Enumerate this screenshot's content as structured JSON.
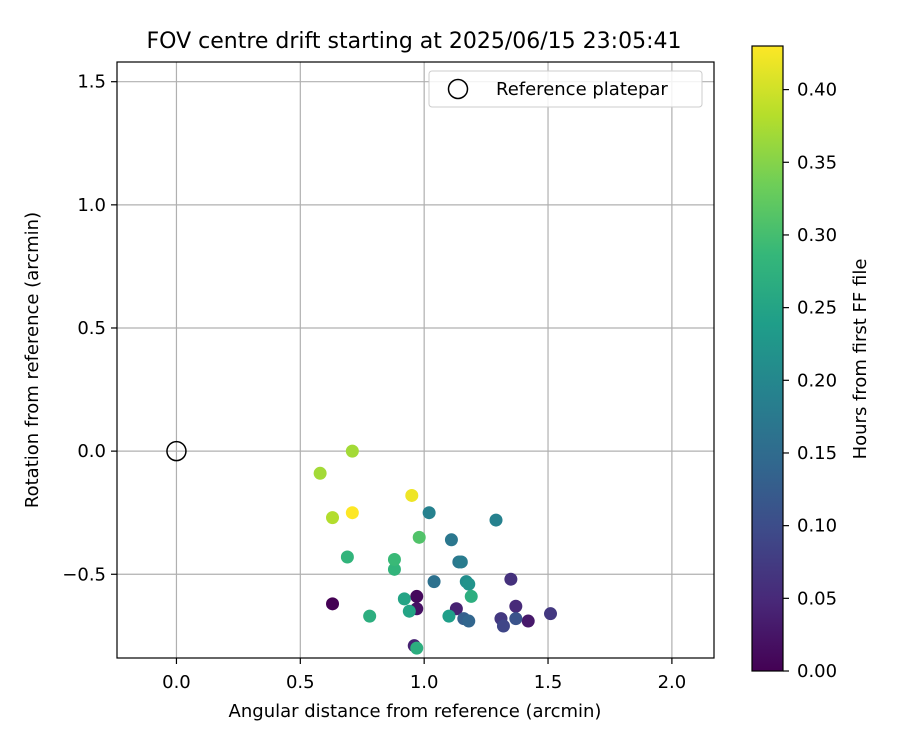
{
  "chart_data": {
    "type": "scatter",
    "title": "FOV centre drift starting at 2025/06/15 23:05:41",
    "xlabel": "Angular distance from reference (arcmin)",
    "ylabel": "Rotation from reference (arcmin)",
    "xlim": [
      -0.24,
      2.17
    ],
    "ylim": [
      -0.84,
      1.58
    ],
    "xticks": [
      0.0,
      0.5,
      1.0,
      1.5,
      2.0
    ],
    "xtick_labels": [
      "0.0",
      "0.5",
      "1.0",
      "1.5",
      "2.0"
    ],
    "yticks": [
      -0.5,
      0.0,
      0.5,
      1.0,
      1.5
    ],
    "ytick_labels": [
      "−0.5",
      "0.0",
      "0.5",
      "1.0",
      "1.5"
    ],
    "grid": true,
    "legend": {
      "placement": "top-right",
      "entries": [
        "Reference platepar"
      ]
    },
    "colormap": "viridis",
    "colorbar": {
      "label": "Hours from first FF file",
      "range": [
        0.0,
        0.43
      ],
      "ticks": [
        0.0,
        0.05,
        0.1,
        0.15,
        0.2,
        0.25,
        0.3,
        0.35,
        0.4
      ],
      "tick_labels": [
        "0.00",
        "0.05",
        "0.10",
        "0.15",
        "0.20",
        "0.25",
        "0.30",
        "0.35",
        "0.40"
      ]
    },
    "reference_point": {
      "x": 0.0,
      "y": 0.0
    },
    "points": [
      {
        "x": 0.63,
        "y": -0.62,
        "c": 0.0
      },
      {
        "x": 0.97,
        "y": -0.59,
        "c": 0.01
      },
      {
        "x": 0.97,
        "y": -0.64,
        "c": 0.02
      },
      {
        "x": 0.96,
        "y": -0.79,
        "c": 0.04
      },
      {
        "x": 1.13,
        "y": -0.64,
        "c": 0.04
      },
      {
        "x": 1.42,
        "y": -0.69,
        "c": 0.03
      },
      {
        "x": 1.37,
        "y": -0.63,
        "c": 0.05
      },
      {
        "x": 1.35,
        "y": -0.52,
        "c": 0.06
      },
      {
        "x": 1.51,
        "y": -0.66,
        "c": 0.07
      },
      {
        "x": 1.31,
        "y": -0.68,
        "c": 0.07
      },
      {
        "x": 1.32,
        "y": -0.71,
        "c": 0.09
      },
      {
        "x": 1.37,
        "y": -0.68,
        "c": 0.11
      },
      {
        "x": 1.16,
        "y": -0.68,
        "c": 0.13
      },
      {
        "x": 1.18,
        "y": -0.69,
        "c": 0.14
      },
      {
        "x": 1.04,
        "y": -0.53,
        "c": 0.16
      },
      {
        "x": 1.11,
        "y": -0.36,
        "c": 0.17
      },
      {
        "x": 1.14,
        "y": -0.45,
        "c": 0.17
      },
      {
        "x": 1.15,
        "y": -0.45,
        "c": 0.18
      },
      {
        "x": 1.02,
        "y": -0.25,
        "c": 0.19
      },
      {
        "x": 1.29,
        "y": -0.28,
        "c": 0.19
      },
      {
        "x": 1.17,
        "y": -0.53,
        "c": 0.21
      },
      {
        "x": 1.18,
        "y": -0.54,
        "c": 0.22
      },
      {
        "x": 1.1,
        "y": -0.67,
        "c": 0.24
      },
      {
        "x": 0.94,
        "y": -0.65,
        "c": 0.25
      },
      {
        "x": 0.92,
        "y": -0.6,
        "c": 0.25
      },
      {
        "x": 1.19,
        "y": -0.59,
        "c": 0.27
      },
      {
        "x": 0.97,
        "y": -0.8,
        "c": 0.27
      },
      {
        "x": 0.78,
        "y": -0.67,
        "c": 0.27
      },
      {
        "x": 0.69,
        "y": -0.43,
        "c": 0.28
      },
      {
        "x": 0.88,
        "y": -0.48,
        "c": 0.28
      },
      {
        "x": 0.88,
        "y": -0.44,
        "c": 0.29
      },
      {
        "x": 0.98,
        "y": -0.35,
        "c": 0.31
      },
      {
        "x": 0.71,
        "y": 0.0,
        "c": 0.37
      },
      {
        "x": 0.58,
        "y": -0.09,
        "c": 0.37
      },
      {
        "x": 0.63,
        "y": -0.27,
        "c": 0.38
      },
      {
        "x": 0.95,
        "y": -0.18,
        "c": 0.42
      },
      {
        "x": 0.71,
        "y": -0.25,
        "c": 0.43
      }
    ]
  }
}
